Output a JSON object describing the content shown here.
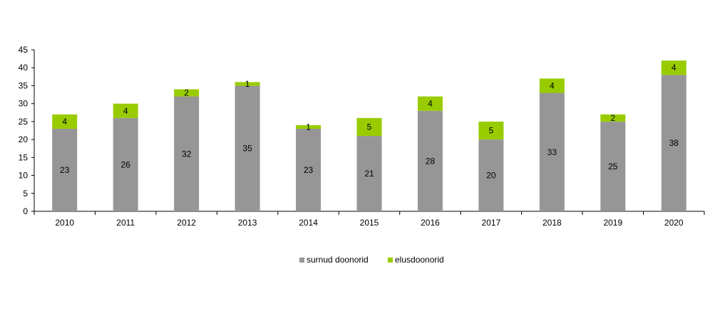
{
  "chart_data": {
    "type": "bar",
    "stacked": true,
    "categories": [
      "2010",
      "2011",
      "2012",
      "2013",
      "2014",
      "2015",
      "2016",
      "2017",
      "2018",
      "2019",
      "2020"
    ],
    "series": [
      {
        "name": "surnud doonorid",
        "color": "#969696",
        "values": [
          23,
          26,
          32,
          35,
          23,
          21,
          28,
          20,
          33,
          25,
          38
        ]
      },
      {
        "name": "elusdoonorid",
        "color": "#99cc00",
        "values": [
          4,
          4,
          2,
          1,
          1,
          5,
          4,
          5,
          4,
          2,
          4
        ]
      }
    ],
    "yticks": [
      "0",
      "5",
      "10",
      "15",
      "20",
      "25",
      "30",
      "35",
      "40",
      "45"
    ],
    "ylim": [
      0,
      45
    ],
    "legend_position": "bottom",
    "grid": false
  }
}
